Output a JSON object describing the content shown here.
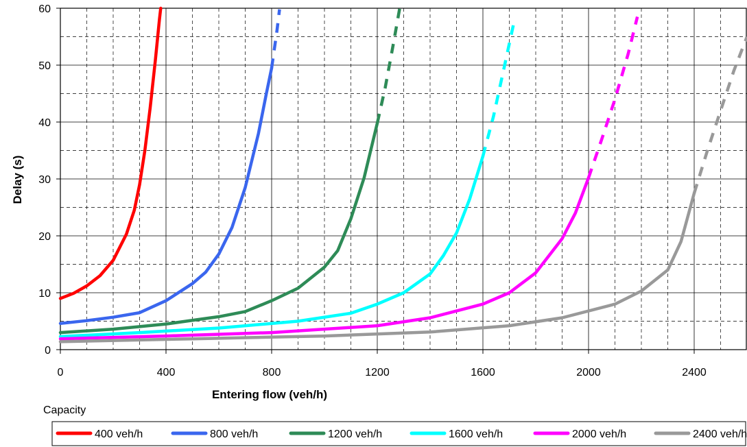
{
  "chart_data": {
    "type": "line",
    "xlabel": "Entering flow (veh/h)",
    "ylabel": "Delay (s)",
    "xlim": [
      0,
      2600
    ],
    "ylim": [
      0,
      60
    ],
    "x_ticks": [
      0,
      400,
      800,
      1200,
      1600,
      2000,
      2400
    ],
    "x_tick_labels": [
      "0",
      "400",
      "800",
      "1200",
      "1600",
      "2000",
      "2400"
    ],
    "y_ticks": [
      0,
      10,
      20,
      30,
      40,
      50,
      60
    ],
    "y_tick_labels": [
      "0",
      "10",
      "20",
      "30",
      "40",
      "50",
      "60"
    ],
    "grid": "major solid, minor dashed",
    "legend_title": "Capacity",
    "legend_position": "bottom",
    "series": [
      {
        "name": "400 veh/h",
        "color": "#ff0000",
        "capacity": 400,
        "solid": [
          [
            0,
            9.0
          ],
          [
            50,
            9.9
          ],
          [
            100,
            11.2
          ],
          [
            150,
            13.0
          ],
          [
            200,
            15.7
          ],
          [
            250,
            20.3
          ],
          [
            280,
            24.5
          ],
          [
            300,
            29.0
          ],
          [
            320,
            35.0
          ],
          [
            340,
            42.5
          ],
          [
            360,
            51.0
          ],
          [
            375,
            58.0
          ],
          [
            380,
            60.0
          ]
        ],
        "dashed": []
      },
      {
        "name": "800 veh/h",
        "color": "#3a66ee",
        "capacity": 800,
        "solid": [
          [
            0,
            4.6
          ],
          [
            100,
            5.1
          ],
          [
            200,
            5.7
          ],
          [
            300,
            6.5
          ],
          [
            400,
            8.6
          ],
          [
            500,
            11.6
          ],
          [
            550,
            13.6
          ],
          [
            600,
            16.8
          ],
          [
            650,
            21.5
          ],
          [
            700,
            28.5
          ],
          [
            750,
            38.0
          ],
          [
            780,
            45.0
          ],
          [
            800,
            49.5
          ]
        ],
        "dashed": [
          [
            820,
            56.0
          ],
          [
            830,
            59.8
          ]
        ]
      },
      {
        "name": "1200 veh/h",
        "color": "#2e8b57",
        "capacity": 1200,
        "solid": [
          [
            0,
            3.0
          ],
          [
            200,
            3.6
          ],
          [
            400,
            4.5
          ],
          [
            600,
            5.8
          ],
          [
            700,
            6.7
          ],
          [
            800,
            8.6
          ],
          [
            900,
            10.8
          ],
          [
            1000,
            14.5
          ],
          [
            1050,
            17.4
          ],
          [
            1100,
            23.0
          ],
          [
            1150,
            30.2
          ],
          [
            1200,
            39.8
          ]
        ],
        "dashed": [
          [
            1230,
            46.0
          ],
          [
            1260,
            53.5
          ],
          [
            1285,
            60.0
          ]
        ]
      },
      {
        "name": "1600 veh/h",
        "color": "#00ffff",
        "capacity": 1600,
        "solid": [
          [
            0,
            2.3
          ],
          [
            300,
            3.0
          ],
          [
            600,
            3.8
          ],
          [
            900,
            5.0
          ],
          [
            1100,
            6.4
          ],
          [
            1200,
            8.0
          ],
          [
            1300,
            10.0
          ],
          [
            1400,
            13.3
          ],
          [
            1450,
            16.5
          ],
          [
            1500,
            20.5
          ],
          [
            1550,
            26.5
          ],
          [
            1600,
            34.0
          ]
        ],
        "dashed": [
          [
            1640,
            41.0
          ],
          [
            1680,
            49.5
          ],
          [
            1715,
            57.0
          ]
        ]
      },
      {
        "name": "2000 veh/h",
        "color": "#ff00ff",
        "capacity": 2000,
        "solid": [
          [
            0,
            1.9
          ],
          [
            400,
            2.4
          ],
          [
            800,
            3.0
          ],
          [
            1200,
            4.2
          ],
          [
            1400,
            5.6
          ],
          [
            1600,
            8.0
          ],
          [
            1700,
            10.0
          ],
          [
            1800,
            13.5
          ],
          [
            1900,
            19.5
          ],
          [
            1950,
            24.0
          ],
          [
            2000,
            30.2
          ]
        ],
        "dashed": [
          [
            2050,
            37.0
          ],
          [
            2100,
            44.0
          ],
          [
            2150,
            52.0
          ],
          [
            2185,
            58.5
          ]
        ]
      },
      {
        "name": "2400 veh/h",
        "color": "#999999",
        "capacity": 2400,
        "solid": [
          [
            0,
            1.4
          ],
          [
            500,
            1.9
          ],
          [
            1000,
            2.4
          ],
          [
            1400,
            3.1
          ],
          [
            1700,
            4.2
          ],
          [
            1900,
            5.6
          ],
          [
            2100,
            8.0
          ],
          [
            2200,
            10.3
          ],
          [
            2300,
            14.0
          ],
          [
            2350,
            19.0
          ],
          [
            2400,
            27.5
          ]
        ],
        "dashed": [
          [
            2450,
            35.0
          ],
          [
            2500,
            42.0
          ],
          [
            2550,
            49.0
          ],
          [
            2600,
            55.0
          ]
        ]
      }
    ]
  }
}
